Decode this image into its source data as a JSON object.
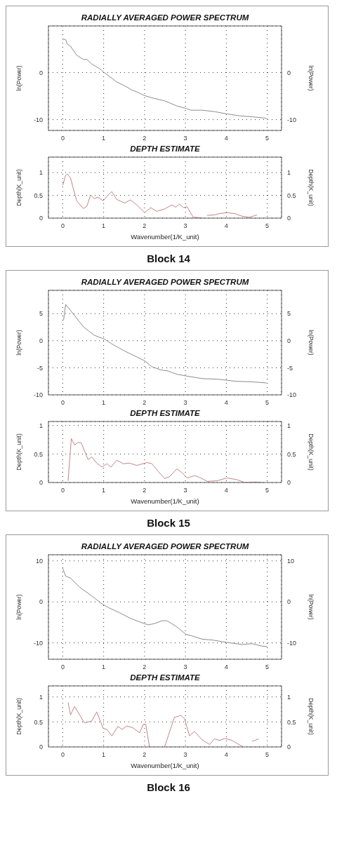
{
  "chart_data": [
    {
      "type": "line",
      "title": "RADIALLY AVERAGED POWER SPECTRUM",
      "ylabel": "ln(Power)",
      "y2label": "ln(Power)",
      "xlim": [
        -0.35,
        5.35
      ],
      "xticks": [
        0,
        1,
        2,
        3,
        4,
        5
      ],
      "ylim": [
        -12.3,
        9.9
      ],
      "yticks": [
        -10,
        0
      ],
      "y2lim": [
        -12.3,
        9.9
      ],
      "y2ticks": [
        -10,
        0
      ],
      "grid": true,
      "marker": "none",
      "line_style": "solid",
      "x": [
        0,
        0.07,
        0.11,
        0.19,
        0.34,
        0.5,
        0.59,
        0.71,
        0.89,
        1.0,
        1.14,
        1.32,
        1.51,
        1.69,
        1.81,
        2.0,
        2.24,
        2.49,
        2.79,
        3.01,
        3.13,
        3.41,
        3.71,
        4.02,
        4.33,
        4.63,
        4.98
      ],
      "series": [
        {
          "color": "#8c8c8c",
          "values": [
            7.1,
            7.0,
            6.1,
            5.6,
            3.7,
            2.8,
            2.8,
            1.8,
            0.9,
            0.1,
            -0.8,
            -2.0,
            -2.8,
            -3.7,
            -4.1,
            -4.9,
            -5.5,
            -6.0,
            -7.1,
            -7.6,
            -8.0,
            -8.0,
            -8.3,
            -8.8,
            -9.2,
            -9.4,
            -9.7
          ]
        }
      ]
    },
    {
      "type": "line",
      "title": "DEPTH ESTIMATE",
      "xlabel": "Wavenumber(1/K_unit)",
      "ylabel": "Depth(K_unit)",
      "y2label": "Depth(K_unit)",
      "xlim": [
        -0.35,
        5.35
      ],
      "xticks": [
        0,
        1,
        2,
        3,
        4,
        5
      ],
      "ylim": [
        0,
        1.34
      ],
      "yticks": [
        0,
        0.5,
        1
      ],
      "y2lim": [
        0,
        1.34
      ],
      "y2ticks": [
        0,
        0.5,
        1
      ],
      "grid": true,
      "marker": "none",
      "line_style": "solid",
      "annotations": [
        "Block 14"
      ],
      "x": [
        0,
        0.07,
        0.11,
        0.19,
        0.34,
        0.5,
        0.59,
        0.68,
        0.77,
        0.86,
        0.99,
        1.08,
        1.2,
        1.32,
        1.51,
        1.66,
        1.81,
        2.0,
        2.15,
        2.3,
        2.49,
        2.67,
        2.76,
        2.86,
        2.95,
        3.04,
        3.19,
        3.35,
        3.41,
        3.47,
        3.53,
        3.71,
        3.84,
        4.02,
        4.2,
        4.39,
        4.57,
        4.75
      ],
      "series": [
        {
          "color": "#c48484",
          "values": [
            0.72,
            0.94,
            0.97,
            0.88,
            0.38,
            0.21,
            0.26,
            0.51,
            0.43,
            0.46,
            0.38,
            0.48,
            0.58,
            0.41,
            0.33,
            0.4,
            0.29,
            0.12,
            0.23,
            0.15,
            0.2,
            0.29,
            0.24,
            0.31,
            0.23,
            0.25,
            0.02,
            0.01,
            0,
            null,
            0.06,
            0.07,
            0.1,
            0.12,
            0.1,
            0.04,
            0.02,
            0.07
          ]
        }
      ]
    },
    {
      "type": "line",
      "title": "RADIALLY AVERAGED POWER SPECTRUM",
      "ylabel": "ln(Power)",
      "y2label": "ln(Power)",
      "xlim": [
        -0.35,
        5.35
      ],
      "xticks": [
        0,
        1,
        2,
        3,
        4,
        5
      ],
      "ylim": [
        -10,
        9.3
      ],
      "yticks": [
        -10,
        -5,
        0,
        5
      ],
      "y2lim": [
        -10,
        9.3
      ],
      "y2ticks": [
        -10,
        -5,
        0,
        5
      ],
      "grid": true,
      "marker": "none",
      "line_style": "solid",
      "x": [
        0.02,
        0.07,
        0.22,
        0.5,
        0.77,
        1.02,
        1.2,
        1.51,
        1.81,
        2.0,
        2.18,
        2.4,
        2.58,
        2.79,
        3.01,
        3.41,
        3.77,
        4.02,
        4.23,
        4.63,
        4.98
      ],
      "series": [
        {
          "color": "#8c8c8c",
          "values": [
            3.8,
            6.7,
            5.3,
            2.6,
            1.0,
            0.3,
            -0.6,
            -1.9,
            -3.0,
            -3.7,
            -4.8,
            -5.4,
            -5.6,
            -6.2,
            -6.5,
            -7.0,
            -7.1,
            -7.3,
            -7.5,
            -7.6,
            -7.8
          ]
        }
      ]
    },
    {
      "type": "line",
      "title": "DEPTH ESTIMATE",
      "xlabel": "Wavenumber(1/K_unit)",
      "ylabel": "Depth(K_unit)",
      "y2label": "Depth(K_unit)",
      "xlim": [
        -0.35,
        5.35
      ],
      "xticks": [
        0,
        1,
        2,
        3,
        4,
        5
      ],
      "ylim": [
        0,
        1.07
      ],
      "yticks": [
        0,
        0.5,
        1
      ],
      "y2lim": [
        0,
        1.07
      ],
      "y2ticks": [
        0,
        0.5,
        1
      ],
      "grid": true,
      "marker": "none",
      "line_style": "solid",
      "annotations": [
        "Block 15"
      ],
      "x": [
        0.13,
        0.21,
        0.29,
        0.37,
        0.45,
        0.62,
        0.71,
        0.83,
        0.96,
        1.08,
        1.18,
        1.32,
        1.48,
        1.63,
        1.81,
        2.06,
        2.18,
        2.33,
        2.49,
        2.61,
        2.79,
        2.92,
        3.04,
        3.22,
        3.35,
        3.53,
        3.77,
        4.02,
        4.26,
        4.45,
        4.69,
        4.88
      ],
      "series": [
        {
          "color": "#c48484",
          "values": [
            0.03,
            0.77,
            0.66,
            0.7,
            0.7,
            0.4,
            0.45,
            0.34,
            0.27,
            0.33,
            0.27,
            0.39,
            0.33,
            0.34,
            0.3,
            0.35,
            0.33,
            0.2,
            0.07,
            0.1,
            0.24,
            0.17,
            0.08,
            0.12,
            0.09,
            0.02,
            0.03,
            0.08,
            0.05,
            0,
            0.01,
            0
          ]
        }
      ]
    },
    {
      "type": "line",
      "title": "RADIALLY AVERAGED POWER SPECTRUM",
      "ylabel": "ln(Power)",
      "y2label": "ln(Power)",
      "xlim": [
        -0.35,
        5.35
      ],
      "xticks": [
        0,
        1,
        2,
        3,
        4,
        5
      ],
      "ylim": [
        -14,
        11.5
      ],
      "yticks": [
        -10,
        0,
        10
      ],
      "y2lim": [
        -14,
        11.5
      ],
      "y2ticks": [
        -10,
        0,
        10
      ],
      "grid": true,
      "marker": "none",
      "line_style": "solid",
      "x": [
        0,
        0.07,
        0.19,
        0.4,
        0.77,
        0.96,
        1.14,
        1.38,
        1.63,
        1.88,
        2.09,
        2.24,
        2.43,
        2.55,
        2.79,
        3.01,
        3.16,
        3.41,
        3.65,
        4.02,
        4.39,
        4.63,
        4.88,
        5.0
      ],
      "series": [
        {
          "color": "#8c8c8c",
          "values": [
            8.2,
            6.3,
            5.8,
            3.7,
            1.0,
            -0.5,
            -1.5,
            -2.6,
            -3.9,
            -4.9,
            -5.6,
            -5.3,
            -4.6,
            -4.6,
            -6.1,
            -7.9,
            -8.3,
            -9.1,
            -9.3,
            -9.9,
            -10.4,
            -10.2,
            -10.8,
            -10.9
          ]
        }
      ]
    },
    {
      "type": "line",
      "title": "DEPTH ESTIMATE",
      "xlabel": "Wavenumber(1/K_unit)",
      "ylabel": "Depth(K_unit)",
      "y2label": "Depth(K_unit)",
      "xlim": [
        -0.35,
        5.35
      ],
      "xticks": [
        0,
        1,
        2,
        3,
        4,
        5
      ],
      "ylim": [
        0,
        1.22
      ],
      "yticks": [
        0,
        0.5,
        1
      ],
      "y2lim": [
        0,
        1.22
      ],
      "y2ticks": [
        0,
        0.5,
        1
      ],
      "grid": true,
      "marker": "none",
      "line_style": "solid",
      "annotations": [
        "Block 16"
      ],
      "x": [
        0.13,
        0.19,
        0.29,
        0.53,
        0.71,
        0.83,
        0.99,
        1.08,
        1.2,
        1.35,
        1.45,
        1.57,
        1.72,
        1.88,
        1.97,
        2.03,
        2.12,
        2.3,
        2.49,
        2.73,
        2.89,
        2.98,
        3.1,
        3.22,
        3.41,
        3.59,
        3.71,
        3.84,
        3.96,
        4.14,
        4.26,
        4.39,
        4.5,
        4.63,
        4.79
      ],
      "series": [
        {
          "color": "#c48484",
          "values": [
            0.89,
            0.64,
            0.81,
            0.48,
            0.52,
            0.7,
            0.37,
            0.35,
            0.22,
            0.41,
            0.35,
            0.42,
            0.38,
            0.28,
            0.45,
            0.45,
            0,
            null,
            0,
            0.59,
            0.63,
            0.56,
            0.22,
            0.31,
            0.14,
            0.05,
            0.16,
            0.13,
            0.17,
            0.13,
            0.07,
            0.01,
            null,
            0.11,
            0.16
          ]
        }
      ]
    }
  ]
}
